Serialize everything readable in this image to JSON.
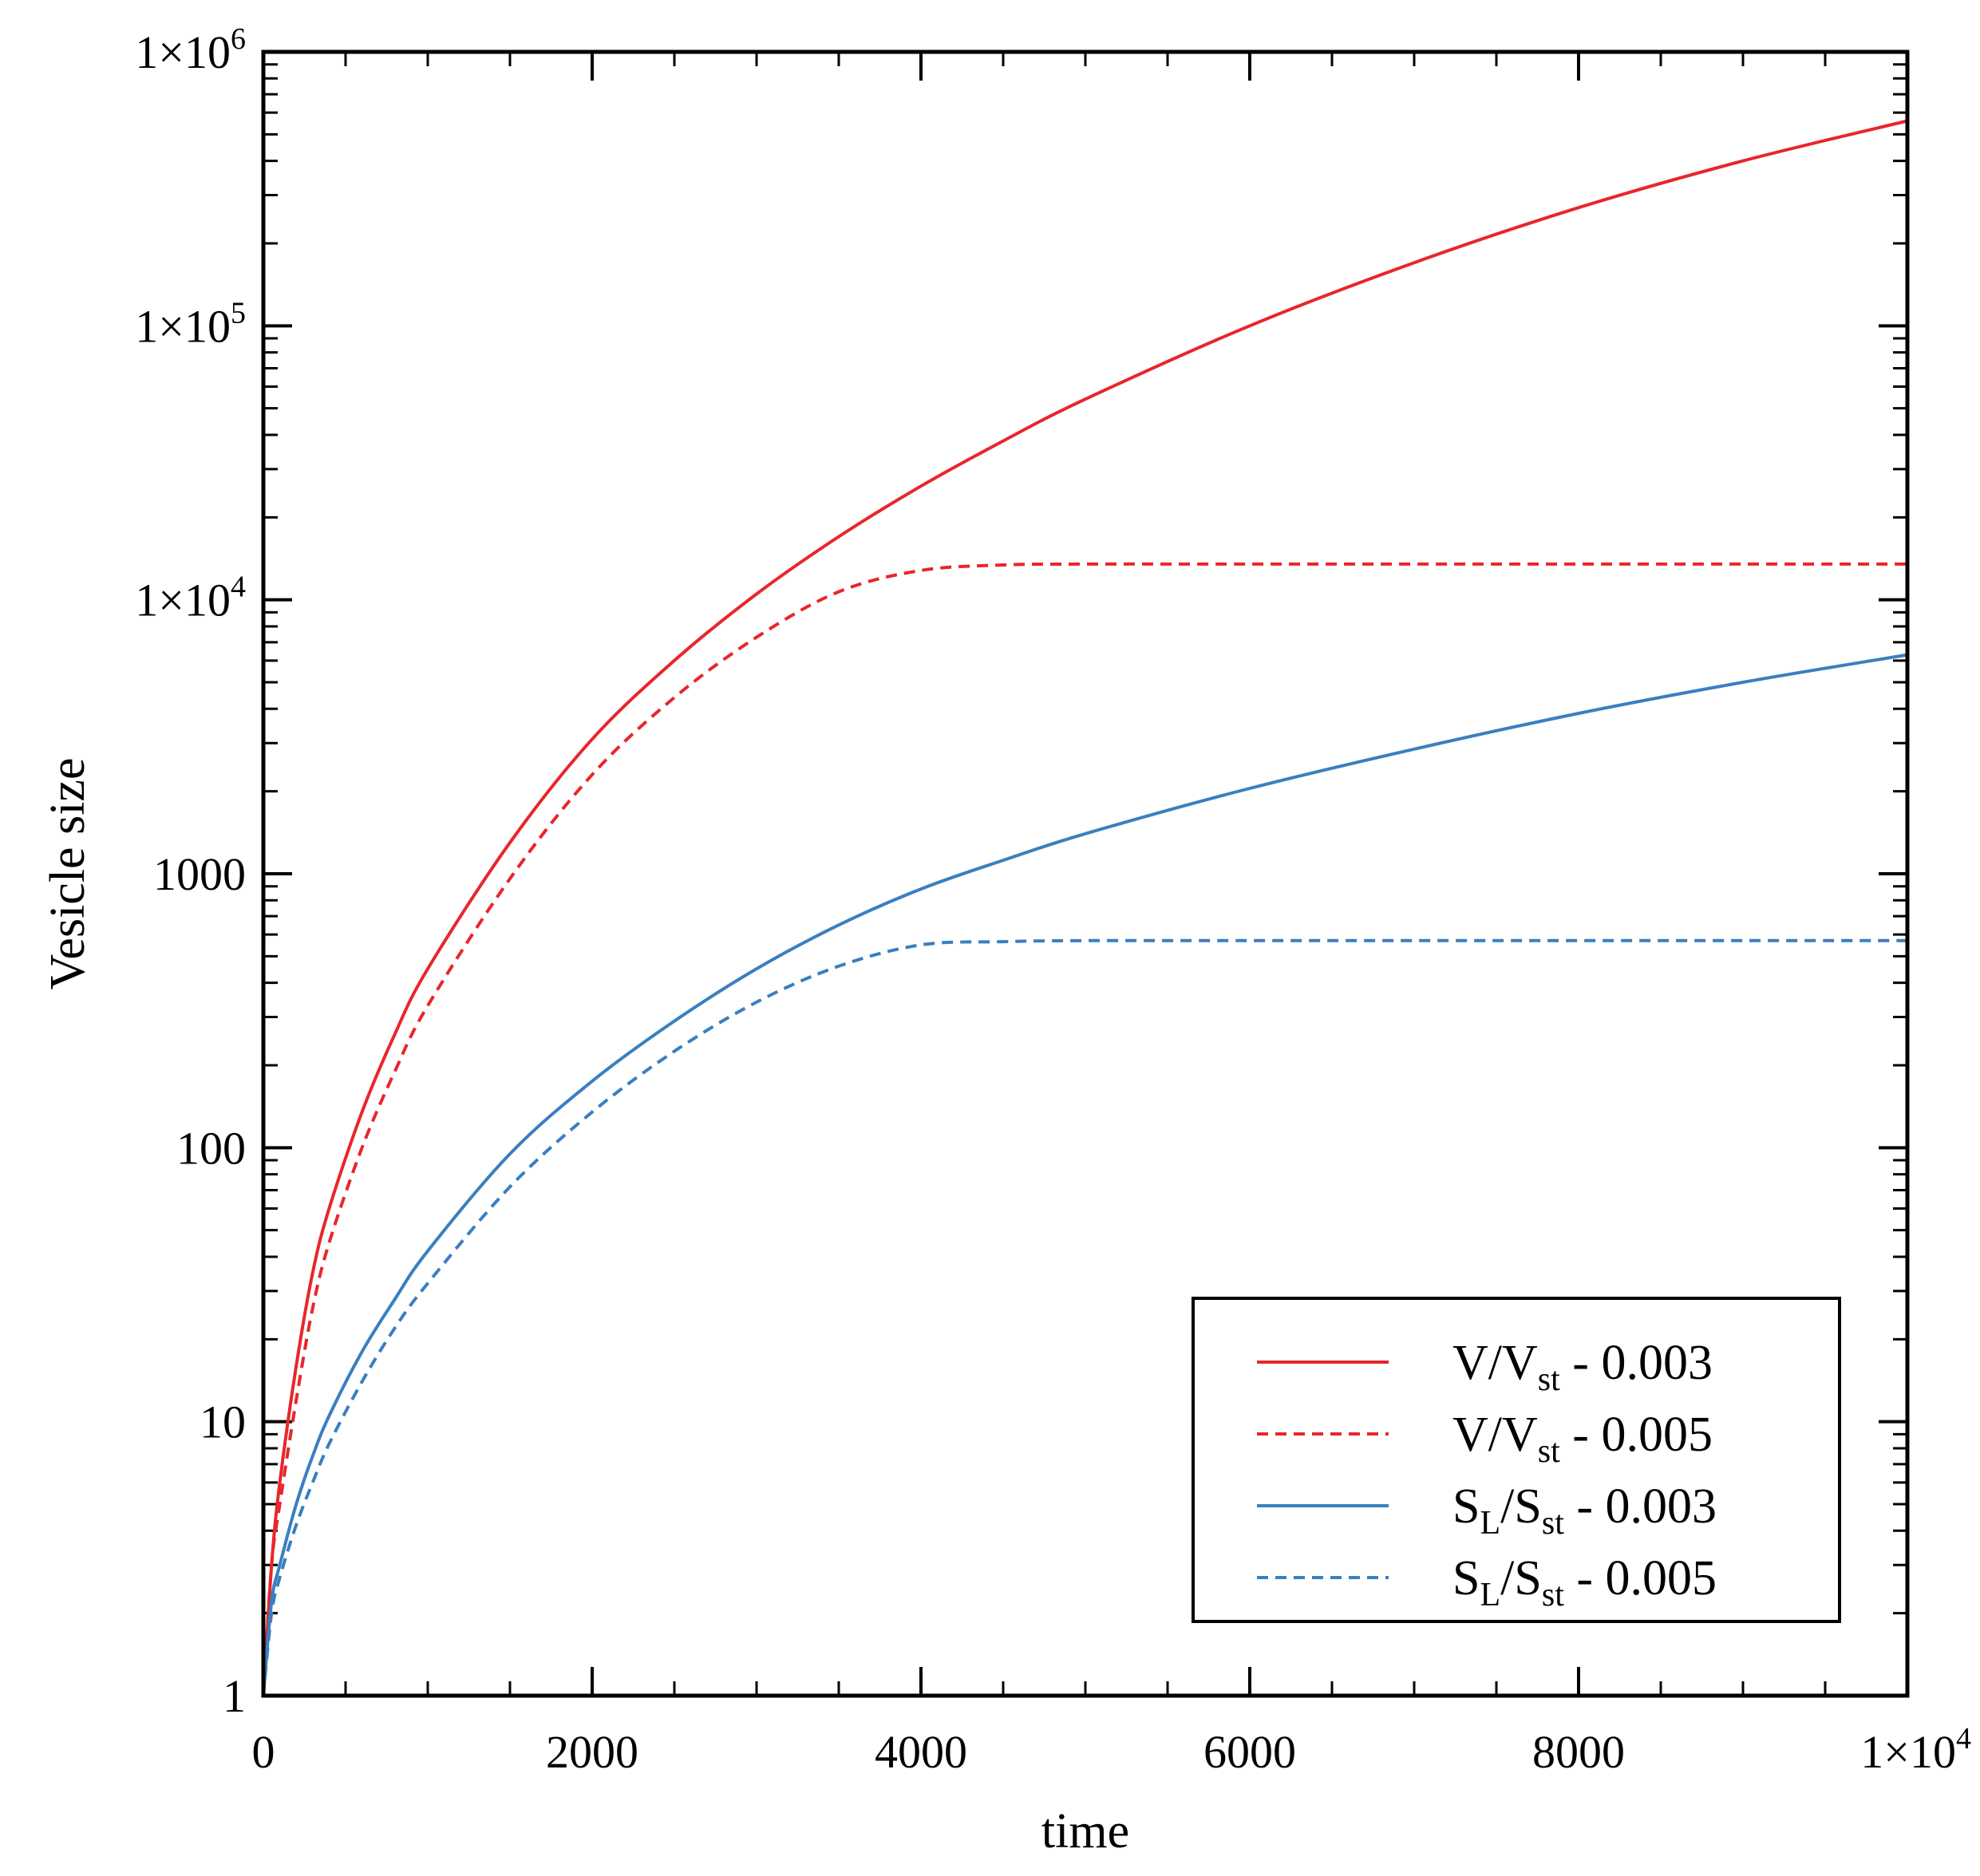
{
  "chart_data": {
    "type": "line",
    "title": "",
    "xlabel": "time",
    "ylabel": "Vesicle size",
    "xscale": "linear",
    "yscale": "log",
    "xlim": [
      0,
      10000
    ],
    "ylim": [
      1,
      1000000
    ],
    "grid": false,
    "legend_position": "bottom-right",
    "x_ticks": [
      {
        "value": 0,
        "label": "0"
      },
      {
        "value": 2000,
        "label": "2000"
      },
      {
        "value": 4000,
        "label": "4000"
      },
      {
        "value": 6000,
        "label": "6000"
      },
      {
        "value": 8000,
        "label": "8000"
      },
      {
        "value": 10000,
        "label": "1×10",
        "sup": "4"
      }
    ],
    "y_ticks": [
      {
        "value": 1,
        "label": "1"
      },
      {
        "value": 10,
        "label": "10"
      },
      {
        "value": 100,
        "label": "100"
      },
      {
        "value": 1000,
        "label": "1000"
      },
      {
        "value": 10000,
        "label": "1×10",
        "sup": "4"
      },
      {
        "value": 100000,
        "label": "1×10",
        "sup": "5"
      },
      {
        "value": 1000000,
        "label": "1×10",
        "sup": "6"
      }
    ],
    "x": [
      0,
      50,
      100,
      200,
      300,
      400,
      600,
      800,
      1000,
      1500,
      2000,
      2500,
      3000,
      3500,
      4000,
      4500,
      5000,
      6000,
      7000,
      8000,
      9000,
      10000
    ],
    "series": [
      {
        "name": "V/Vst - 0.003",
        "legend": {
          "main": "V/V",
          "sub": "st",
          "suffix": " - 0.003"
        },
        "color": "#e8262b",
        "dash": "solid",
        "values": [
          1,
          3,
          6,
          16,
          35,
          60,
          135,
          260,
          450,
          1300,
          3100,
          6000,
          10500,
          17000,
          26000,
          38000,
          54000,
          100000,
          170000,
          270000,
          400000,
          560000
        ]
      },
      {
        "name": "V/Vst - 0.005",
        "legend": {
          "main": "V/V",
          "sub": "st",
          "suffix": " - 0.005"
        },
        "color": "#e8262b",
        "dash": "dashed",
        "values": [
          1,
          3,
          5,
          12,
          26,
          45,
          100,
          190,
          330,
          960,
          2300,
          4400,
          7300,
          10700,
          12800,
          13400,
          13500,
          13500,
          13500,
          13500,
          13500,
          13500
        ]
      },
      {
        "name": "SL/Sst - 0.003",
        "legend": {
          "main": "S",
          "msub": "L",
          "main2": "/S",
          "sub": "st",
          "suffix": " - 0.003"
        },
        "color": "#3a7fc0",
        "dash": "solid",
        "values": [
          1,
          2.2,
          3,
          5,
          7.5,
          10.5,
          18,
          28,
          42,
          95,
          175,
          290,
          450,
          650,
          880,
          1120,
          1400,
          2050,
          2850,
          3850,
          5000,
          6300
        ]
      },
      {
        "name": "SL/Sst - 0.005",
        "legend": {
          "main": "S",
          "msub": "L",
          "main2": "/S",
          "sub": "st",
          "suffix": " - 0.005"
        },
        "color": "#3a7fc0",
        "dash": "dashed",
        "values": [
          1,
          2,
          2.7,
          4.2,
          6,
          8.3,
          14,
          22,
          32,
          72,
          135,
          225,
          340,
          460,
          550,
          565,
          570,
          570,
          570,
          570,
          570,
          570
        ]
      }
    ]
  }
}
